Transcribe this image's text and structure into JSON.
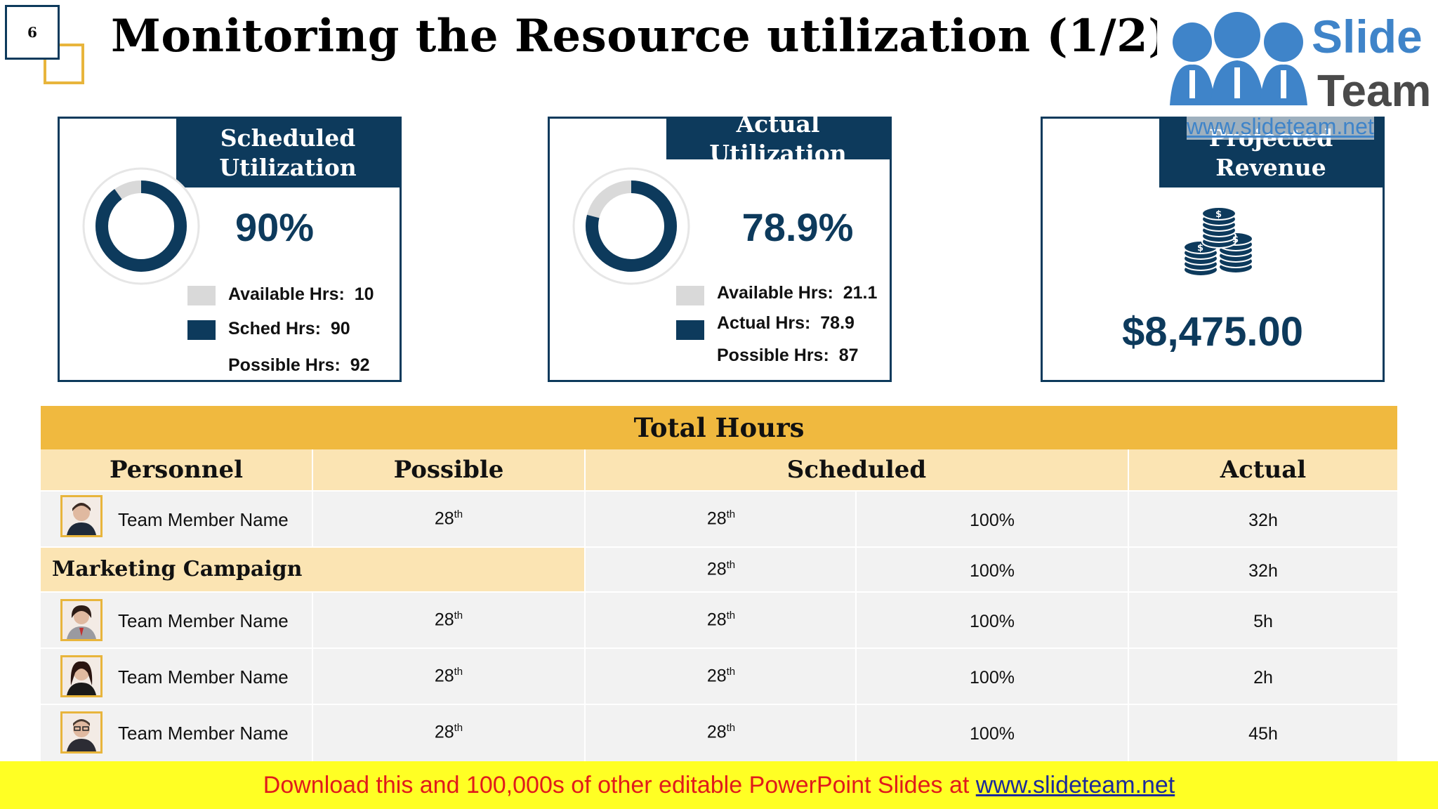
{
  "slide": {
    "number": "6",
    "title": "Monitoring the Resource utilization (1/2)"
  },
  "logo": {
    "line1": "Slide",
    "line2": "Team",
    "url": "www.slideteam.net"
  },
  "cards": [
    {
      "heading": "Scheduled Utilization",
      "value": "90%",
      "fraction": 0.9,
      "legend": [
        {
          "label": "Available Hrs:",
          "value": "10",
          "color": "#d9d9d9"
        },
        {
          "label": "Sched Hrs:",
          "value": "90",
          "color": "#0d3a5c"
        },
        {
          "label": "Possible Hrs:",
          "value": "92"
        }
      ]
    },
    {
      "heading": "Actual Utilization",
      "value": "78.9%",
      "fraction": 0.789,
      "legend": [
        {
          "label": "Available Hrs:",
          "value": "21.1",
          "color": "#d9d9d9"
        },
        {
          "label": "Actual Hrs:",
          "value": "78.9",
          "color": "#0d3a5c"
        },
        {
          "label": "Possible Hrs:",
          "value": "87"
        }
      ]
    },
    {
      "heading": "Projected Revenue",
      "value": "$8,475.00",
      "icon": "coin-stack-icon"
    }
  ],
  "table": {
    "title": "Total Hours",
    "headers": [
      "Personnel",
      "Possible",
      "Scheduled",
      "Actual"
    ],
    "rows": [
      {
        "name": "Team Member Name",
        "possible": "28",
        "possible_sup": "th",
        "scheduled": "28",
        "scheduled_sup": "th",
        "percent": "100%",
        "actual": "32h"
      },
      {
        "campaign": "Marketing Campaign",
        "scheduled": "28",
        "scheduled_sup": "th",
        "percent": "100%",
        "actual": "32h"
      },
      {
        "name": "Team Member Name",
        "possible": "28",
        "possible_sup": "th",
        "scheduled": "28",
        "scheduled_sup": "th",
        "percent": "100%",
        "actual": "5h"
      },
      {
        "name": "Team Member Name",
        "possible": "28",
        "possible_sup": "th",
        "scheduled": "28",
        "scheduled_sup": "th",
        "percent": "100%",
        "actual": "2h"
      },
      {
        "name": "Team Member Name",
        "possible": "28",
        "possible_sup": "th",
        "scheduled": "28",
        "scheduled_sup": "th",
        "percent": "100%",
        "actual": "45h"
      }
    ]
  },
  "banner": {
    "text": "Download this and 100,000s of other editable PowerPoint Slides at ",
    "link": "www.slideteam.net"
  },
  "colors": {
    "navy": "#0d3a5c",
    "gold": "#f0b93f",
    "light_gold": "#fbe4b3",
    "gray": "#d9d9d9"
  }
}
